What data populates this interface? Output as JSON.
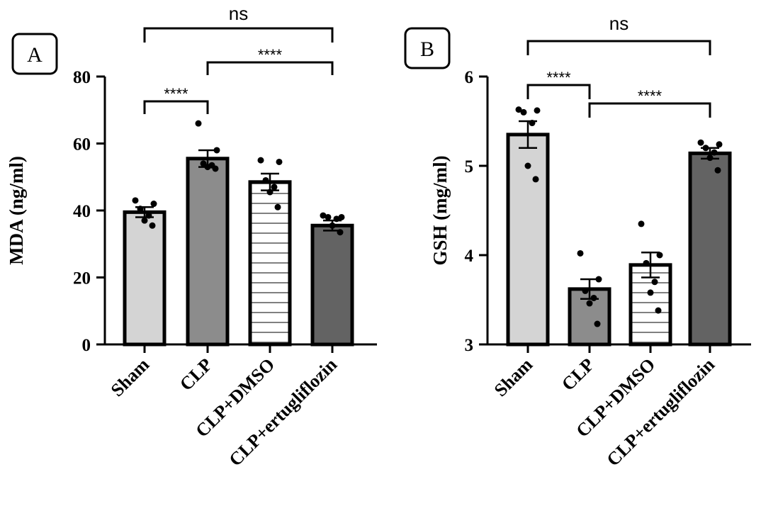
{
  "chart_data": [
    {
      "type": "bar",
      "panel_label": "A",
      "ylabel": "MDA (ng/ml)",
      "ylim": [
        0,
        80
      ],
      "yticks": [
        0,
        20,
        40,
        60,
        80
      ],
      "ytick_labels": [
        "0",
        "20",
        "40",
        "60",
        "80"
      ],
      "categories": [
        "Sham",
        "CLP",
        "CLP+DMSO",
        "CLP+ertugliflozin"
      ],
      "values": [
        39.5,
        55.5,
        48.5,
        35.5
      ],
      "sem": [
        1.5,
        2.5,
        2.5,
        1.5
      ],
      "fills": [
        "#d4d4d4",
        "#8c8c8c",
        "striped",
        "#636363"
      ],
      "points": [
        [
          43,
          42,
          40.5,
          38.5,
          37,
          35.5
        ],
        [
          66,
          58,
          54,
          53.5,
          53,
          52.5
        ],
        [
          55,
          54.5,
          49,
          47,
          45.5,
          41
        ],
        [
          38.5,
          38,
          38,
          37.5,
          35.5,
          33.5
        ]
      ],
      "comparisons": [
        {
          "from": 0,
          "to": 3,
          "label": "ns"
        },
        {
          "from": 1,
          "to": 3,
          "label": "****"
        },
        {
          "from": 0,
          "to": 1,
          "label": "****"
        }
      ]
    },
    {
      "type": "bar",
      "panel_label": "B",
      "ylabel": "GSH (mg/ml)",
      "ylim": [
        3,
        6
      ],
      "yticks": [
        3,
        4,
        5,
        6
      ],
      "ytick_labels": [
        "3",
        "4",
        "5",
        "6"
      ],
      "categories": [
        "Sham",
        "CLP",
        "CLP+DMSO",
        "CLP+ertugliflozin"
      ],
      "values": [
        5.35,
        3.62,
        3.89,
        5.14
      ],
      "sem": [
        0.15,
        0.11,
        0.14,
        0.06
      ],
      "fills": [
        "#d4d4d4",
        "#8c8c8c",
        "striped",
        "#636363"
      ],
      "points": [
        [
          5.63,
          5.62,
          5.6,
          5.48,
          5.0,
          4.85
        ],
        [
          4.02,
          3.73,
          3.6,
          3.52,
          3.46,
          3.23
        ],
        [
          4.35,
          4.0,
          3.91,
          3.7,
          3.58,
          3.38
        ],
        [
          5.26,
          5.24,
          5.2,
          5.15,
          5.09,
          4.95
        ]
      ],
      "comparisons": [
        {
          "from": 0,
          "to": 3,
          "label": "ns"
        },
        {
          "from": 0,
          "to": 1,
          "label": "****"
        },
        {
          "from": 1,
          "to": 3,
          "label": "****"
        }
      ]
    }
  ]
}
